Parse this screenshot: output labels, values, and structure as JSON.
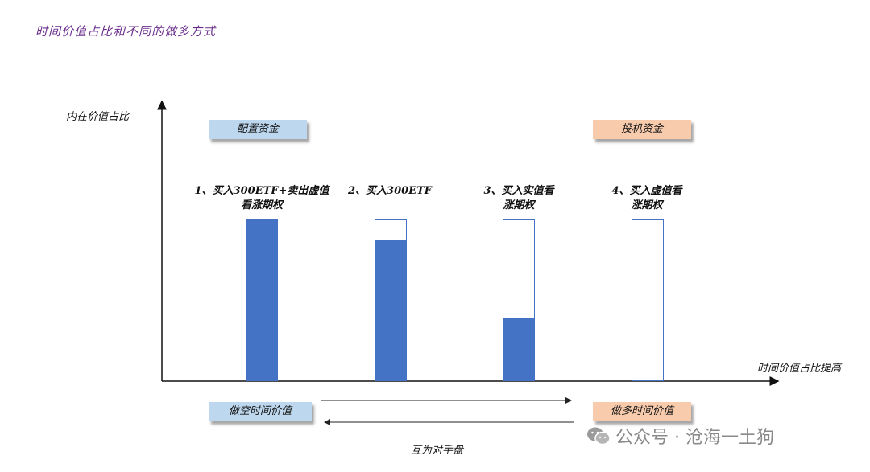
{
  "title": "时间价值占比和不同的做多方式",
  "axes": {
    "ylabel": "内在价值占比",
    "xlabel": "时间价值占比提高"
  },
  "tags": {
    "allocation": "配置资金",
    "speculation": "投机资金",
    "short_time_value": "做空时间价值",
    "long_time_value": "做多时间价值"
  },
  "mutual_label": "互为对手盘",
  "columns": [
    {
      "line1": "1、买入300ETF+卖出虚值",
      "line2": "看涨期权",
      "intrinsic_fraction": 1.0
    },
    {
      "line1": "2、买入300ETF",
      "line2": "",
      "intrinsic_fraction": 0.87
    },
    {
      "line1": "3、买入实值看",
      "line2": "涨期权",
      "intrinsic_fraction": 0.39
    },
    {
      "line1": "4、买入虚值看",
      "line2": "涨期权",
      "intrinsic_fraction": 0.0
    }
  ],
  "colors": {
    "bar": "#4472c4",
    "title": "#6a2c8c",
    "tag_blue": "#bdd7ee",
    "tag_orange": "#f8cbad"
  },
  "watermark": "公众号 · 沧海一土狗"
}
